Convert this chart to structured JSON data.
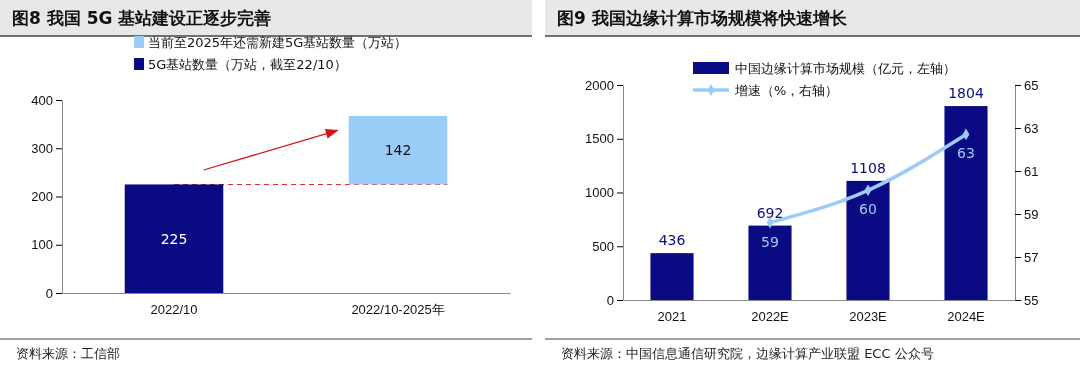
{
  "chart_data": [
    {
      "type": "bar",
      "title": "图8  我国 5G 基站建设正逐步完善",
      "categories": [
        "2022/10",
        "2022/10-2025年"
      ],
      "ylim": [
        0,
        400
      ],
      "yticks": [
        0,
        100,
        200,
        300,
        400
      ],
      "legend": "top left",
      "data_labels": true,
      "series": [
        {
          "name": "当前至2025年还需新建5G基站数量（万站）",
          "color": "#99ccf7",
          "values": [
            null,
            142
          ],
          "base": [
            null,
            225
          ]
        },
        {
          "name": "5G基站数量（万站，截至22/10）",
          "color": "#0a0a82",
          "values": [
            225,
            null
          ]
        }
      ],
      "ref_lines": [
        {
          "axis": "y",
          "value": 225,
          "color": "#e02020",
          "line_style": "dashed"
        }
      ],
      "annotations": [
        "资料来源：工信部"
      ]
    },
    {
      "type": "bar",
      "title": "图9  我国边缘计算市场规模将快速增长",
      "categories": [
        "2021",
        "2022E",
        "2023E",
        "2024E"
      ],
      "ylim": [
        0,
        2000
      ],
      "yticks": [
        0,
        500,
        1000,
        1500,
        2000
      ],
      "y2lim": [
        55,
        65
      ],
      "y2ticks": [
        55,
        57,
        59,
        61,
        63,
        65
      ],
      "legend": "top left",
      "series": [
        {
          "name": "中国边缘计算市场规模（亿元，左轴）",
          "color": "#0a0a82",
          "values": [
            436,
            692,
            1108,
            1804
          ],
          "value_labels": [
            "436",
            "692",
            "1108",
            "1804"
          ]
        },
        {
          "name": "增速（%，右轴）",
          "type": "line",
          "axis": "y2",
          "color": "#9dcbf5",
          "marker": "diamond",
          "values": [
            null,
            58.6,
            60.1,
            62.7
          ],
          "value_labels": [
            null,
            "59",
            "60",
            "63"
          ]
        }
      ],
      "annotations": [
        "资料来源：中国信息通信研究院，边缘计算产业联盟 ECC 公众号"
      ]
    }
  ]
}
